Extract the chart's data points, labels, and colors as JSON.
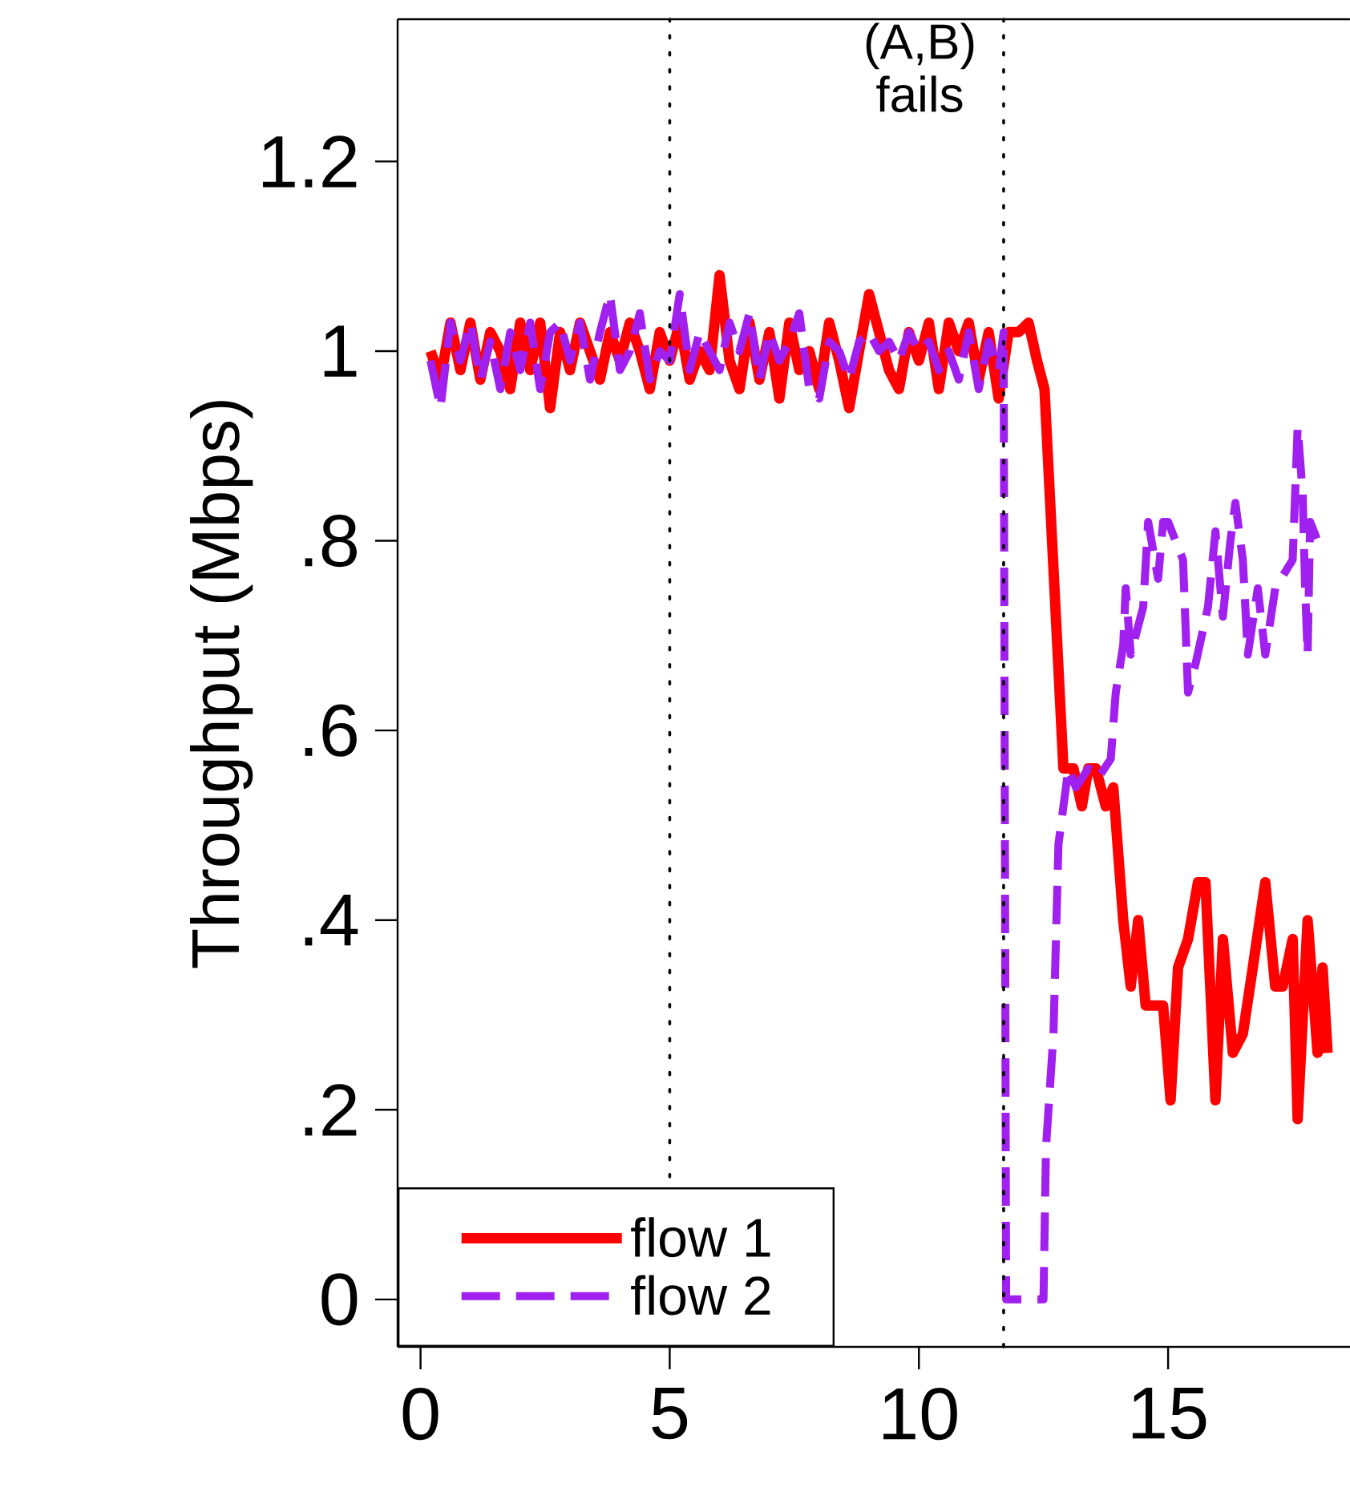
{
  "chart_data": {
    "type": "line",
    "ylabel": "Throughput (Mbps)",
    "xlim": [
      -0.46,
      18.65
    ],
    "ylim": [
      -0.05,
      1.35
    ],
    "xticks": [
      0,
      5,
      10,
      15
    ],
    "yticks": [
      {
        "value": 0,
        "label": "0"
      },
      {
        "value": 0.2,
        "label": ".2"
      },
      {
        "value": 0.4,
        "label": ".4"
      },
      {
        "value": 0.6,
        "label": ".6"
      },
      {
        "value": 0.8,
        "label": ".8"
      },
      {
        "value": 1,
        "label": "1"
      },
      {
        "value": 1.2,
        "label": "1.2"
      }
    ],
    "legend": "bottom left",
    "grid": false,
    "series": [
      {
        "name": "flow 1",
        "color": "#ff0000",
        "line_style": "solid",
        "x": [
          0.2,
          0.4,
          0.6,
          0.8,
          1.0,
          1.2,
          1.4,
          1.6,
          1.8,
          2.0,
          2.2,
          2.4,
          2.6,
          2.8,
          3.0,
          3.2,
          3.4,
          3.6,
          3.8,
          4.0,
          4.2,
          4.4,
          4.6,
          4.8,
          5.0,
          5.2,
          5.4,
          5.6,
          5.8,
          6.0,
          6.2,
          6.4,
          6.6,
          6.8,
          7.0,
          7.2,
          7.4,
          7.6,
          7.8,
          8.0,
          8.2,
          8.4,
          8.6,
          8.8,
          9.0,
          9.2,
          9.4,
          9.6,
          9.8,
          10.0,
          10.2,
          10.4,
          10.6,
          10.8,
          11.0,
          11.2,
          11.4,
          11.6,
          11.8,
          12.0,
          12.2,
          12.37,
          12.52,
          12.9,
          13.1,
          13.27,
          13.4,
          13.55,
          13.75,
          13.9,
          14.1,
          14.25,
          14.4,
          14.55,
          14.9,
          15.05,
          15.2,
          15.4,
          15.6,
          15.75,
          15.95,
          16.1,
          16.3,
          16.5,
          16.7,
          16.95,
          17.15,
          17.3,
          17.5,
          17.6,
          17.8,
          18.0,
          18.1,
          18.2
        ],
        "values": [
          1.0,
          0.97,
          1.03,
          0.98,
          1.03,
          0.97,
          1.02,
          1.0,
          0.96,
          1.03,
          0.98,
          1.03,
          0.94,
          1.02,
          0.98,
          1.03,
          1.0,
          0.97,
          1.02,
          0.99,
          1.03,
          1.0,
          0.96,
          1.02,
          0.99,
          1.03,
          0.97,
          1.0,
          0.98,
          1.08,
          0.99,
          0.96,
          1.03,
          0.97,
          1.02,
          0.95,
          1.03,
          0.98,
          1.0,
          0.96,
          1.03,
          0.99,
          0.94,
          1.0,
          1.06,
          1.02,
          0.98,
          0.96,
          1.02,
          0.99,
          1.03,
          0.96,
          1.03,
          1.0,
          1.03,
          0.97,
          1.02,
          0.95,
          1.02,
          1.02,
          1.03,
          0.99,
          0.96,
          0.56,
          0.56,
          0.52,
          0.56,
          0.56,
          0.52,
          0.54,
          0.4,
          0.33,
          0.4,
          0.31,
          0.31,
          0.21,
          0.35,
          0.38,
          0.44,
          0.44,
          0.21,
          0.38,
          0.26,
          0.28,
          0.35,
          0.44,
          0.33,
          0.33,
          0.38,
          0.19,
          0.4,
          0.26,
          0.35,
          0.26
        ]
      },
      {
        "name": "flow 2",
        "color": "#a020f0",
        "line_style": "dashed",
        "x": [
          0.2,
          0.4,
          0.6,
          0.8,
          1.0,
          1.2,
          1.4,
          1.6,
          1.8,
          2.0,
          2.2,
          2.4,
          2.6,
          2.8,
          3.0,
          3.2,
          3.4,
          3.6,
          3.8,
          4.0,
          4.2,
          4.4,
          4.6,
          4.8,
          5.0,
          5.2,
          5.4,
          5.6,
          5.8,
          6.0,
          6.2,
          6.4,
          6.6,
          6.8,
          7.0,
          7.2,
          7.4,
          7.6,
          7.8,
          8.0,
          8.2,
          8.4,
          8.6,
          8.8,
          9.0,
          9.2,
          9.4,
          9.6,
          9.8,
          10.0,
          10.2,
          10.4,
          10.6,
          10.8,
          11.0,
          11.2,
          11.4,
          11.6,
          11.7,
          11.75,
          12.0,
          12.5,
          12.55,
          12.7,
          12.8,
          12.9,
          13.0,
          13.15,
          13.4,
          13.6,
          13.85,
          13.95,
          14.1,
          14.15,
          14.25,
          14.5,
          14.6,
          14.8,
          14.9,
          15.0,
          15.3,
          15.4,
          15.55,
          15.8,
          15.95,
          16.1,
          16.25,
          16.35,
          16.5,
          16.6,
          16.8,
          16.95,
          17.15,
          17.5,
          17.6,
          17.7,
          17.75,
          17.8,
          17.85,
          18.0,
          18.2
        ],
        "values": [
          0.99,
          0.94,
          1.03,
          0.99,
          1.03,
          0.97,
          1.01,
          0.96,
          1.02,
          0.98,
          1.03,
          0.96,
          1.02,
          1.03,
          0.99,
          1.03,
          0.97,
          1.02,
          1.06,
          0.98,
          1.0,
          1.04,
          0.97,
          1.0,
          0.99,
          1.06,
          0.98,
          1.02,
          1.0,
          0.98,
          1.03,
          1.0,
          1.04,
          0.97,
          1.02,
          0.99,
          1.01,
          1.04,
          0.96,
          0.95,
          1.01,
          1.0,
          0.97,
          1.01,
          1.02,
          1.0,
          1.01,
          0.99,
          1.02,
          1.0,
          1.01,
          0.98,
          1.0,
          0.97,
          1.02,
          0.96,
          1.01,
          0.98,
          1.02,
          0.0,
          0.0,
          0.0,
          0.16,
          0.28,
          0.48,
          0.52,
          0.56,
          0.54,
          0.56,
          0.55,
          0.57,
          0.64,
          0.69,
          0.75,
          0.68,
          0.73,
          0.82,
          0.76,
          0.82,
          0.82,
          0.78,
          0.64,
          0.67,
          0.73,
          0.81,
          0.72,
          0.8,
          0.84,
          0.78,
          0.68,
          0.75,
          0.68,
          0.75,
          0.78,
          0.92,
          0.85,
          0.75,
          0.68,
          0.82,
          0.8,
          0.8
        ]
      }
    ],
    "ref_lines": [
      {
        "axis": "x",
        "value": 5,
        "color": "#000000",
        "line_style": "dotted"
      },
      {
        "axis": "x",
        "value": 11.7,
        "color": "#000000",
        "line_style": "dotted",
        "label": "(A,B) fails"
      }
    ]
  }
}
